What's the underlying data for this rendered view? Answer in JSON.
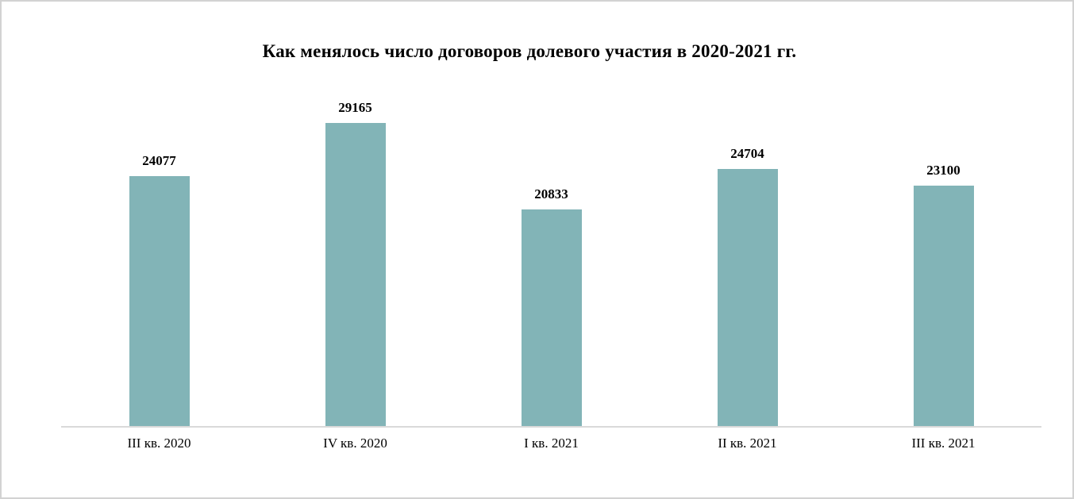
{
  "page": {
    "background": "#ffffff",
    "frame_border_color": "#d2d2d2"
  },
  "chart_data": {
    "type": "bar",
    "title": "Как менялось число договоров долевого участия в 2020-2021 гг.",
    "categories": [
      "III кв. 2020",
      "IV кв. 2020",
      "I кв. 2021",
      "II кв. 2021",
      "III кв. 2021"
    ],
    "values": [
      24077,
      29165,
      20833,
      24704,
      23100
    ],
    "xlabel": "",
    "ylabel": "",
    "ylim": [
      0,
      30000
    ],
    "grid": false,
    "legend": "none",
    "data_labels": true,
    "bar_color": "#82b4b7",
    "axis_line_color": "#d9d9d9",
    "text_color": "#000000"
  }
}
